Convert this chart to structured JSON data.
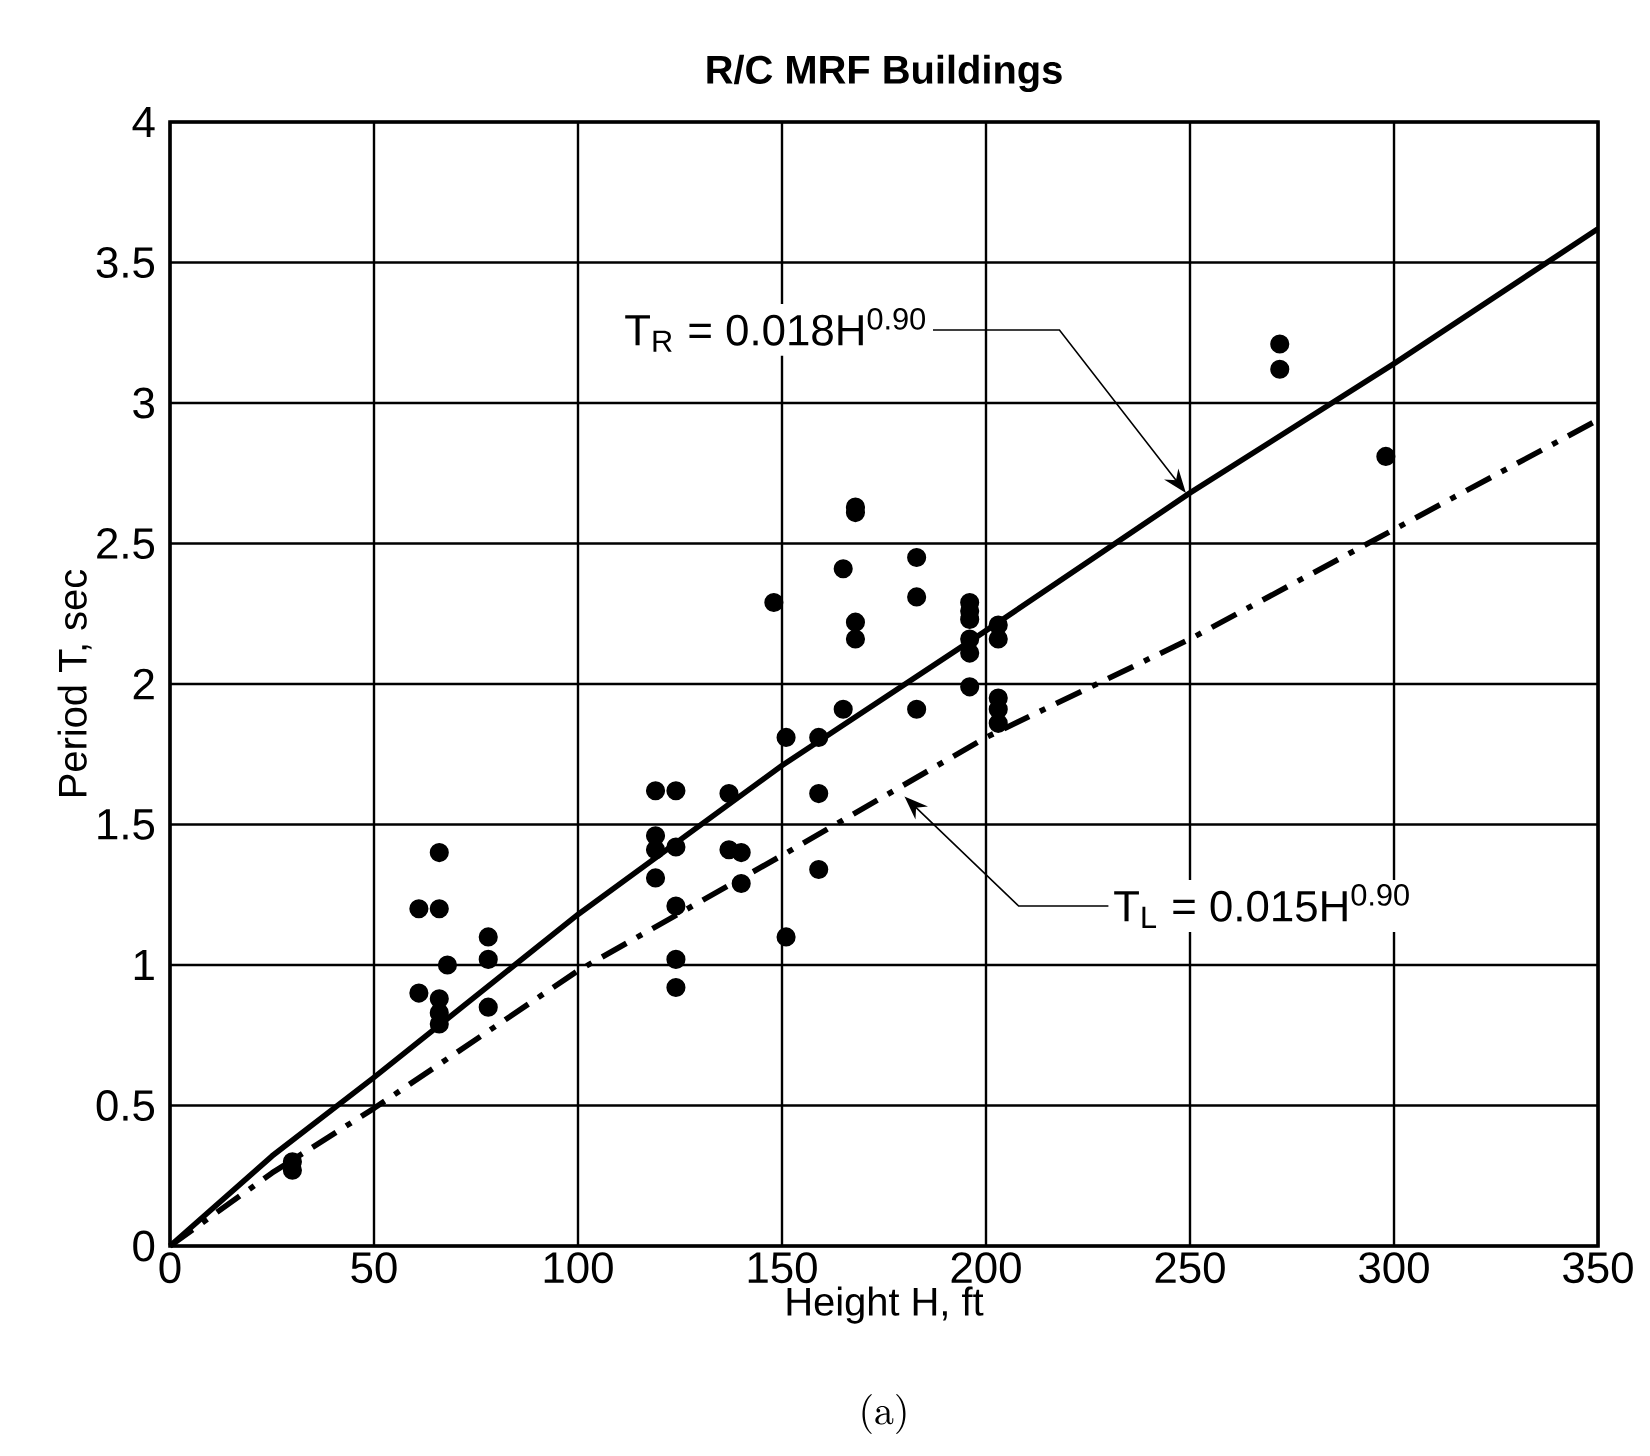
{
  "chart_data": {
    "type": "scatter",
    "title": "R/C MRF Buildings",
    "xlabel": "Height H, ft",
    "ylabel": "Period T, sec",
    "xlim": [
      0,
      350
    ],
    "ylim": [
      0,
      4
    ],
    "xticks": [
      0,
      50,
      100,
      150,
      200,
      250,
      300,
      350
    ],
    "yticks": [
      0,
      0.5,
      1,
      1.5,
      2,
      2.5,
      3,
      3.5,
      4
    ],
    "grid": true,
    "series": [
      {
        "color": "#000000",
        "x": [
          30,
          30,
          61,
          61,
          66,
          66,
          66,
          66,
          66,
          68,
          78,
          78,
          78,
          119,
          119,
          119,
          119,
          124,
          124,
          124,
          124,
          124,
          137,
          137,
          140,
          140,
          148,
          151,
          151,
          159,
          159,
          159,
          165,
          165,
          168,
          168,
          168,
          168,
          183,
          183,
          183,
          196,
          196,
          196,
          196,
          196,
          196,
          203,
          203,
          203,
          203,
          203,
          272,
          272,
          298
        ],
        "values": [
          0.27,
          0.3,
          1.2,
          0.9,
          1.4,
          1.2,
          0.88,
          0.83,
          0.79,
          1.0,
          1.1,
          1.02,
          0.85,
          1.62,
          1.46,
          1.41,
          1.31,
          1.62,
          1.42,
          1.21,
          1.02,
          0.92,
          1.61,
          1.41,
          1.4,
          1.29,
          2.29,
          1.81,
          1.1,
          1.81,
          1.61,
          1.34,
          2.41,
          1.91,
          2.63,
          2.61,
          2.22,
          2.16,
          2.45,
          2.31,
          1.91,
          2.29,
          2.26,
          2.23,
          2.16,
          2.11,
          1.99,
          2.21,
          2.16,
          1.95,
          1.91,
          1.86,
          3.21,
          3.12,
          2.81
        ]
      },
      {
        "type": "line",
        "color": "#000000",
        "line_style": "solid",
        "marker": "none",
        "x": [
          0,
          25,
          50,
          100,
          150,
          200,
          250,
          300,
          350
        ],
        "values": [
          0,
          0.32,
          0.6,
          1.18,
          1.71,
          2.19,
          2.68,
          3.14,
          3.62
        ]
      },
      {
        "type": "line",
        "color": "#000000",
        "line_style": "dashdot",
        "marker": "none",
        "x": [
          0,
          25,
          50,
          100,
          150,
          200,
          250,
          300,
          350
        ],
        "values": [
          0,
          0.26,
          0.49,
          0.98,
          1.39,
          1.81,
          2.16,
          2.55,
          2.94
        ]
      }
    ],
    "annotations": [
      {
        "text": "T$_{R}$ = 0.018H$^{0.90}$",
        "x": 249,
        "y": 2.68
      },
      {
        "text": "T$_{L}$ = 0.015H$^{0.90}$",
        "x": 180,
        "y": 1.6
      },
      "(a)"
    ]
  }
}
